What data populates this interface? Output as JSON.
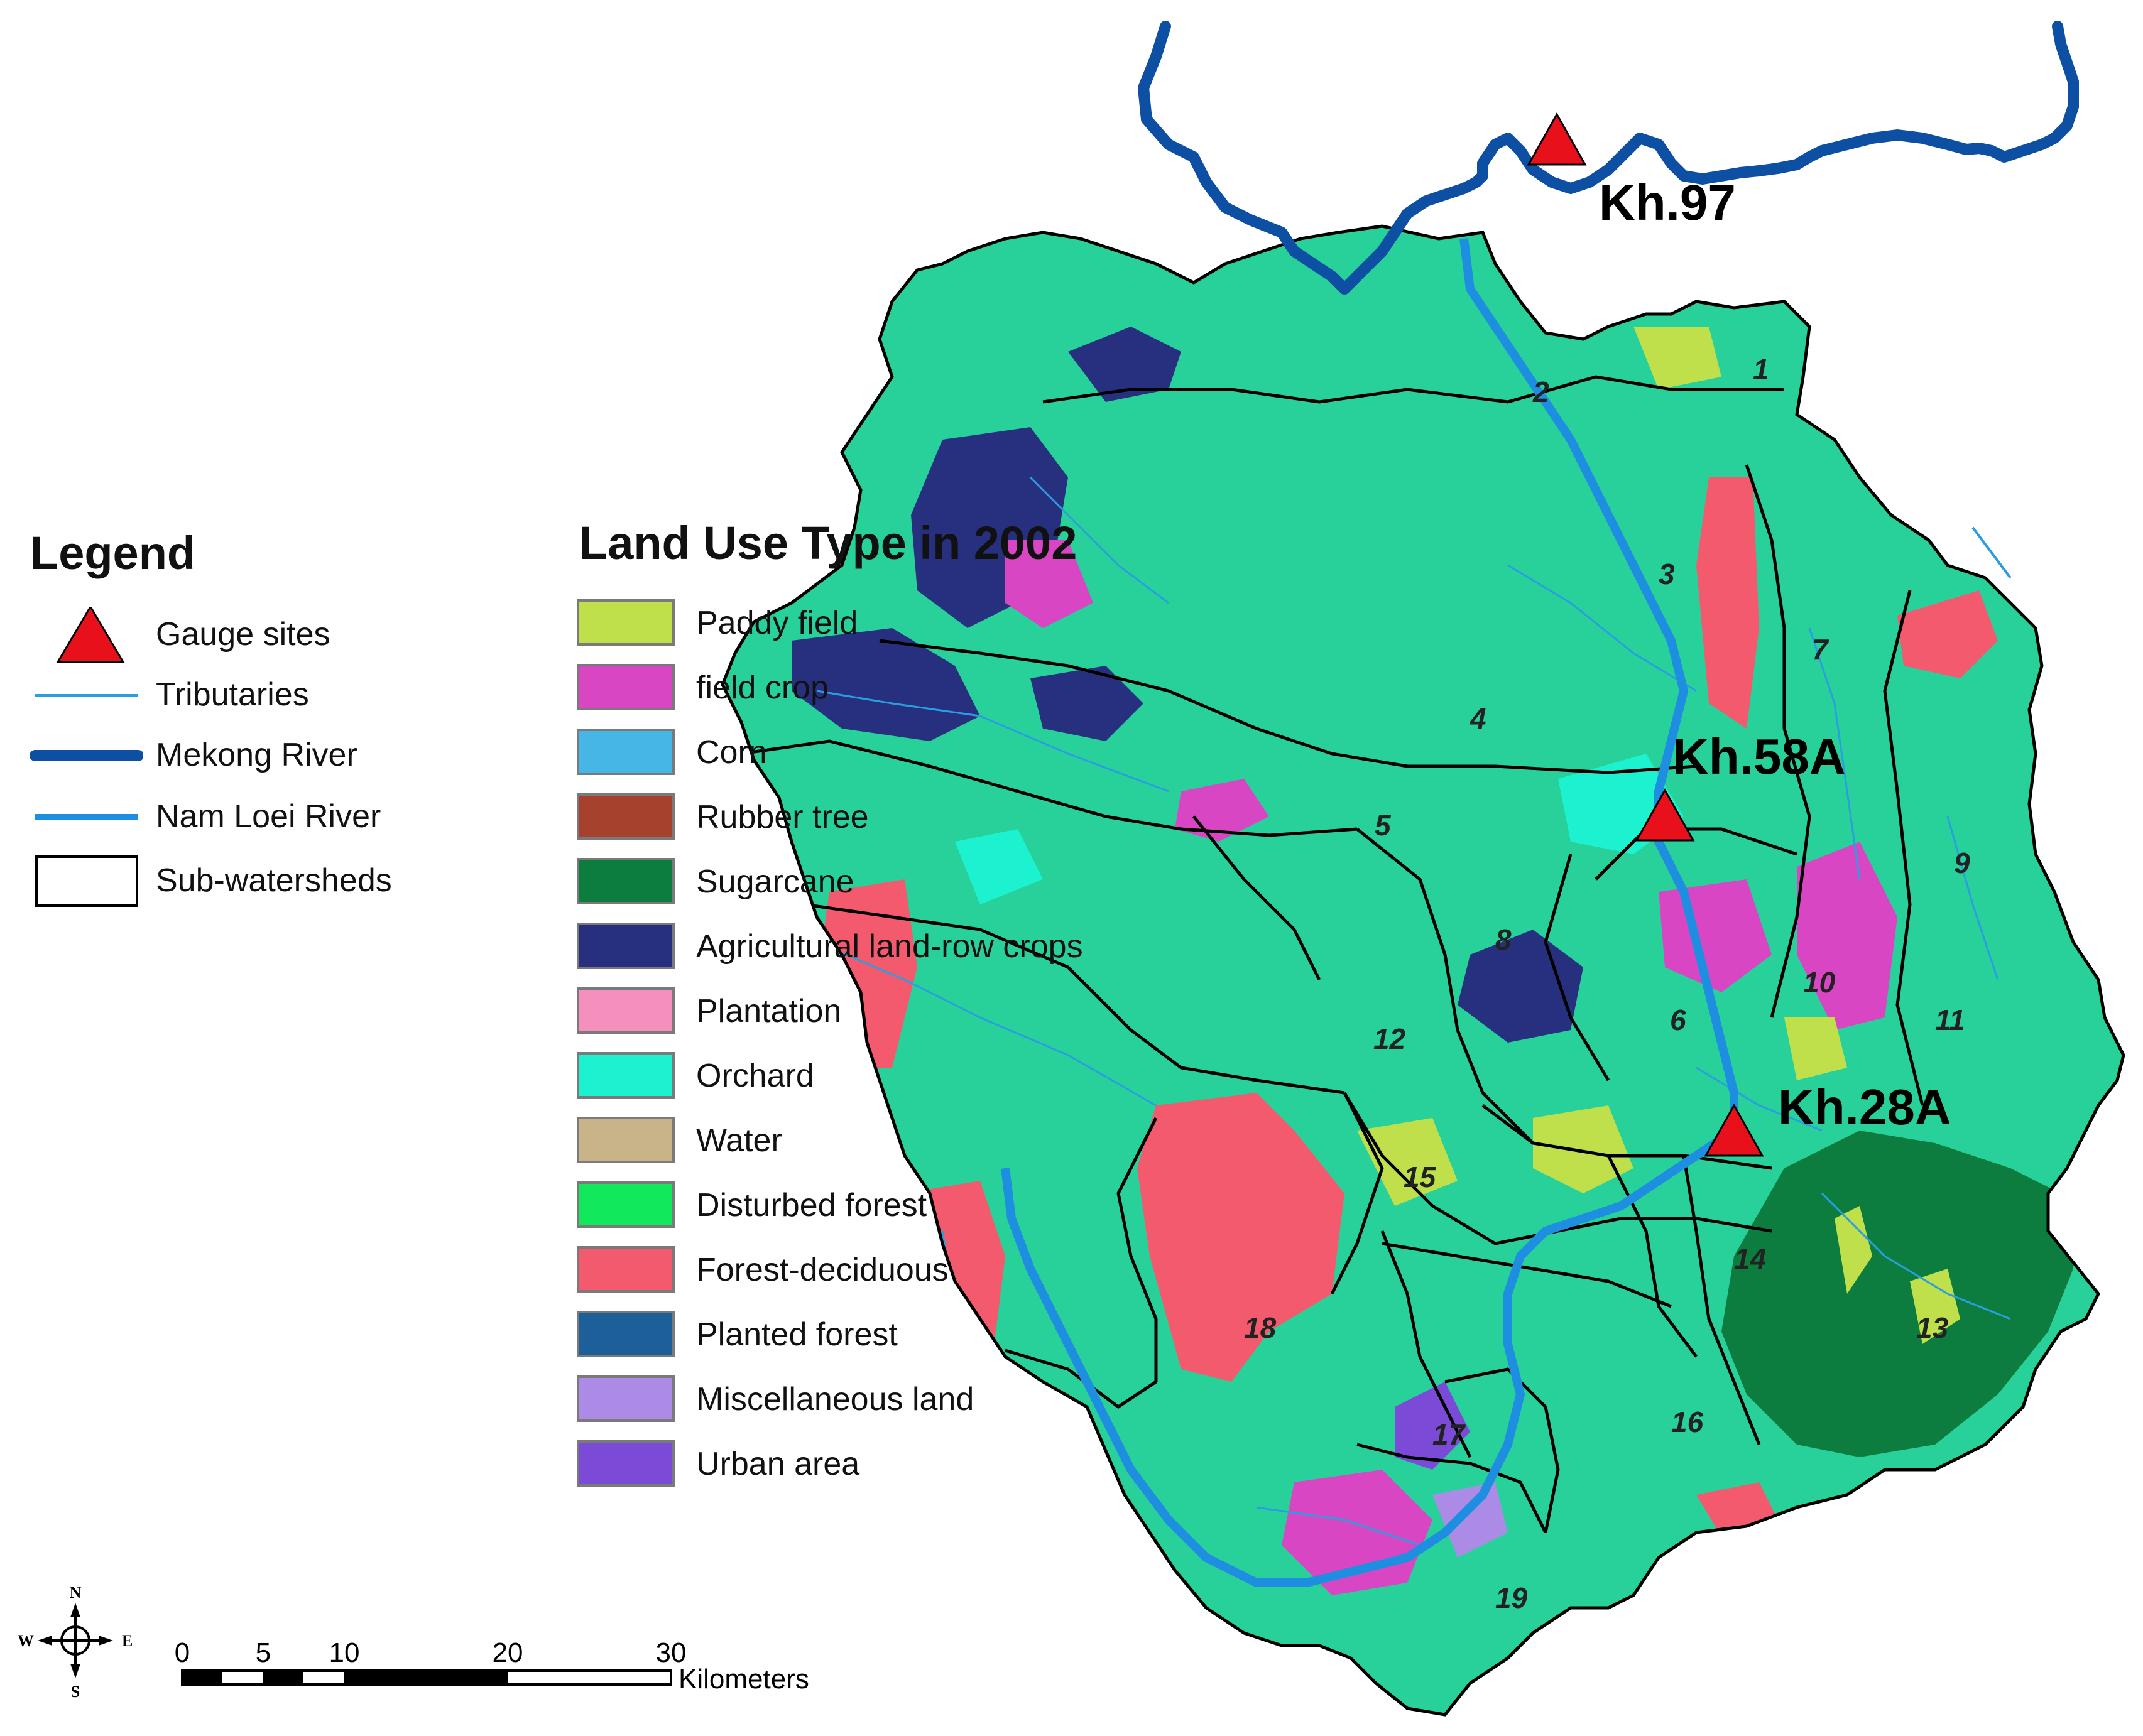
{
  "legend": {
    "title": "Legend",
    "items": [
      {
        "name": "gauge",
        "label": "Gauge sites",
        "color": "#e8101a"
      },
      {
        "name": "tributaries",
        "label": "Tributaries",
        "color": "#2a9fe0"
      },
      {
        "name": "mekong",
        "label": "Mekong River",
        "color": "#0d4fa3"
      },
      {
        "name": "nam-loei",
        "label": "Nam Loei River",
        "color": "#1e8fe0"
      },
      {
        "name": "sub-watersheds",
        "label": "Sub-watersheds",
        "color": "#000000"
      }
    ]
  },
  "land_use": {
    "title": "Land Use Type in 2002",
    "items": [
      {
        "label": "Paddy field",
        "color": "#bfe04a"
      },
      {
        "label": "field crop",
        "color": "#d946c4"
      },
      {
        "label": "Corn",
        "color": "#45b6e6"
      },
      {
        "label": "Rubber tree",
        "color": "#a5412c"
      },
      {
        "label": "Sugarcane",
        "color": "#0c7d3e"
      },
      {
        "label": "Agricultural land-row crops",
        "color": "#272f7f"
      },
      {
        "label": "Plantation",
        "color": "#f48fbe"
      },
      {
        "label": "Orchard",
        "color": "#1df2d0"
      },
      {
        "label": "Water",
        "color": "#c9b48a"
      },
      {
        "label": "Disturbed forest",
        "color": "#12e85c"
      },
      {
        "label": "Forest-deciduous",
        "color": "#f35a6e"
      },
      {
        "label": "Planted forest",
        "color": "#1c5f99"
      },
      {
        "label": "Miscellaneous land",
        "color": "#ab8be6"
      },
      {
        "label": "Urban area",
        "color": "#7b4bd8"
      }
    ]
  },
  "gauges": [
    {
      "name": "Kh.97"
    },
    {
      "name": "Kh.58A"
    },
    {
      "name": "Kh.28A"
    }
  ],
  "subwatersheds": [
    "1",
    "2",
    "3",
    "4",
    "5",
    "6",
    "7",
    "8",
    "9",
    "10",
    "11",
    "12",
    "13",
    "14",
    "15",
    "16",
    "17",
    "18",
    "19"
  ],
  "compass": {
    "n": "N",
    "s": "S",
    "e": "E",
    "w": "W"
  },
  "scale": {
    "ticks": [
      "0",
      "5",
      "10",
      "20",
      "30"
    ],
    "unit": "Kilometers"
  }
}
